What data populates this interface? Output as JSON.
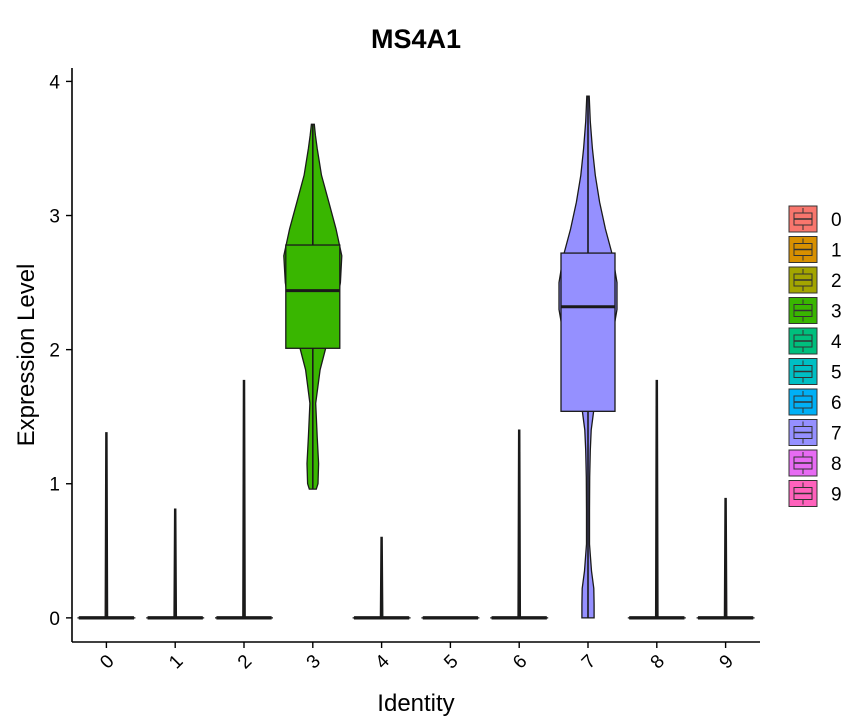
{
  "chart_data": {
    "type": "violin",
    "title": "MS4A1",
    "xlabel": "Identity",
    "ylabel": "Expression Level",
    "ylim": [
      -0.18,
      4.1
    ],
    "yticks": [
      0,
      1,
      2,
      3,
      4
    ],
    "categories": [
      "0",
      "1",
      "2",
      "3",
      "4",
      "5",
      "6",
      "7",
      "8",
      "9"
    ],
    "colors": [
      "#F8766D",
      "#D89000",
      "#A3A500",
      "#39B600",
      "#00BF7D",
      "#00BFC4",
      "#00B0F6",
      "#9590FF",
      "#E76BF3",
      "#FF62BC"
    ],
    "series": [
      {
        "name": "0",
        "max": 1.38,
        "q1": 0,
        "median": 0,
        "q3": 0,
        "min": 0,
        "violin": [
          [
            0,
            1.0
          ],
          [
            0.003,
            0.04
          ],
          [
            1.38,
            0.02
          ]
        ]
      },
      {
        "name": "1",
        "max": 0.81,
        "q1": 0,
        "median": 0,
        "q3": 0,
        "min": 0,
        "violin": [
          [
            0,
            1.0
          ],
          [
            0.003,
            0.04
          ],
          [
            0.81,
            0.02
          ]
        ]
      },
      {
        "name": "2",
        "max": 1.77,
        "q1": 0,
        "median": 0,
        "q3": 0,
        "min": 0,
        "violin": [
          [
            0,
            1.0
          ],
          [
            0.003,
            0.04
          ],
          [
            1.77,
            0.02
          ]
        ]
      },
      {
        "name": "3",
        "min": 0.96,
        "q1": 2.01,
        "median": 2.44,
        "q3": 2.78,
        "max": 3.68,
        "violin": [
          [
            0.96,
            0.12
          ],
          [
            1.0,
            0.18
          ],
          [
            1.15,
            0.2
          ],
          [
            1.35,
            0.15
          ],
          [
            1.6,
            0.1
          ],
          [
            1.85,
            0.25
          ],
          [
            2.1,
            0.55
          ],
          [
            2.3,
            0.8
          ],
          [
            2.5,
            0.95
          ],
          [
            2.7,
            1.0
          ],
          [
            2.9,
            0.8
          ],
          [
            3.1,
            0.55
          ],
          [
            3.3,
            0.3
          ],
          [
            3.5,
            0.15
          ],
          [
            3.6,
            0.09
          ],
          [
            3.68,
            0.05
          ]
        ]
      },
      {
        "name": "4",
        "max": 0.6,
        "q1": 0,
        "median": 0,
        "q3": 0,
        "min": 0,
        "violin": [
          [
            0,
            1.0
          ],
          [
            0.003,
            0.04
          ],
          [
            0.6,
            0.02
          ]
        ]
      },
      {
        "name": "5",
        "max": 0,
        "q1": 0,
        "median": 0,
        "q3": 0,
        "min": 0,
        "violin": [
          [
            0,
            1.0
          ],
          [
            0.003,
            0.04
          ]
        ]
      },
      {
        "name": "6",
        "max": 1.4,
        "q1": 0,
        "median": 0,
        "q3": 0,
        "min": 0,
        "violin": [
          [
            0,
            1.0
          ],
          [
            0.003,
            0.04
          ],
          [
            1.4,
            0.02
          ]
        ]
      },
      {
        "name": "7",
        "min": 0.0,
        "q1": 1.54,
        "median": 2.32,
        "q3": 2.72,
        "max": 3.89,
        "violin": [
          [
            0,
            0.21
          ],
          [
            0.1,
            0.21
          ],
          [
            0.22,
            0.2
          ],
          [
            0.35,
            0.12
          ],
          [
            0.55,
            0.05
          ],
          [
            0.8,
            0.05
          ],
          [
            1.05,
            0.06
          ],
          [
            1.25,
            0.08
          ],
          [
            1.4,
            0.11
          ],
          [
            1.55,
            0.2
          ],
          [
            1.8,
            0.5
          ],
          [
            2.05,
            0.8
          ],
          [
            2.3,
            1.0
          ],
          [
            2.5,
            1.0
          ],
          [
            2.7,
            0.85
          ],
          [
            2.9,
            0.6
          ],
          [
            3.1,
            0.4
          ],
          [
            3.3,
            0.25
          ],
          [
            3.5,
            0.15
          ],
          [
            3.7,
            0.08
          ],
          [
            3.89,
            0.04
          ]
        ]
      },
      {
        "name": "8",
        "max": 1.77,
        "q1": 0,
        "median": 0,
        "q3": 0,
        "min": 0,
        "violin": [
          [
            0,
            1.0
          ],
          [
            0.003,
            0.04
          ],
          [
            1.77,
            0.02
          ]
        ]
      },
      {
        "name": "9",
        "max": 0.89,
        "q1": 0,
        "median": 0,
        "q3": 0,
        "min": 0,
        "violin": [
          [
            0,
            1.0
          ],
          [
            0.003,
            0.04
          ],
          [
            0.89,
            0.02
          ]
        ]
      }
    ],
    "legend": {
      "position": "right",
      "entries": [
        "0",
        "1",
        "2",
        "3",
        "4",
        "5",
        "6",
        "7",
        "8",
        "9"
      ]
    }
  }
}
